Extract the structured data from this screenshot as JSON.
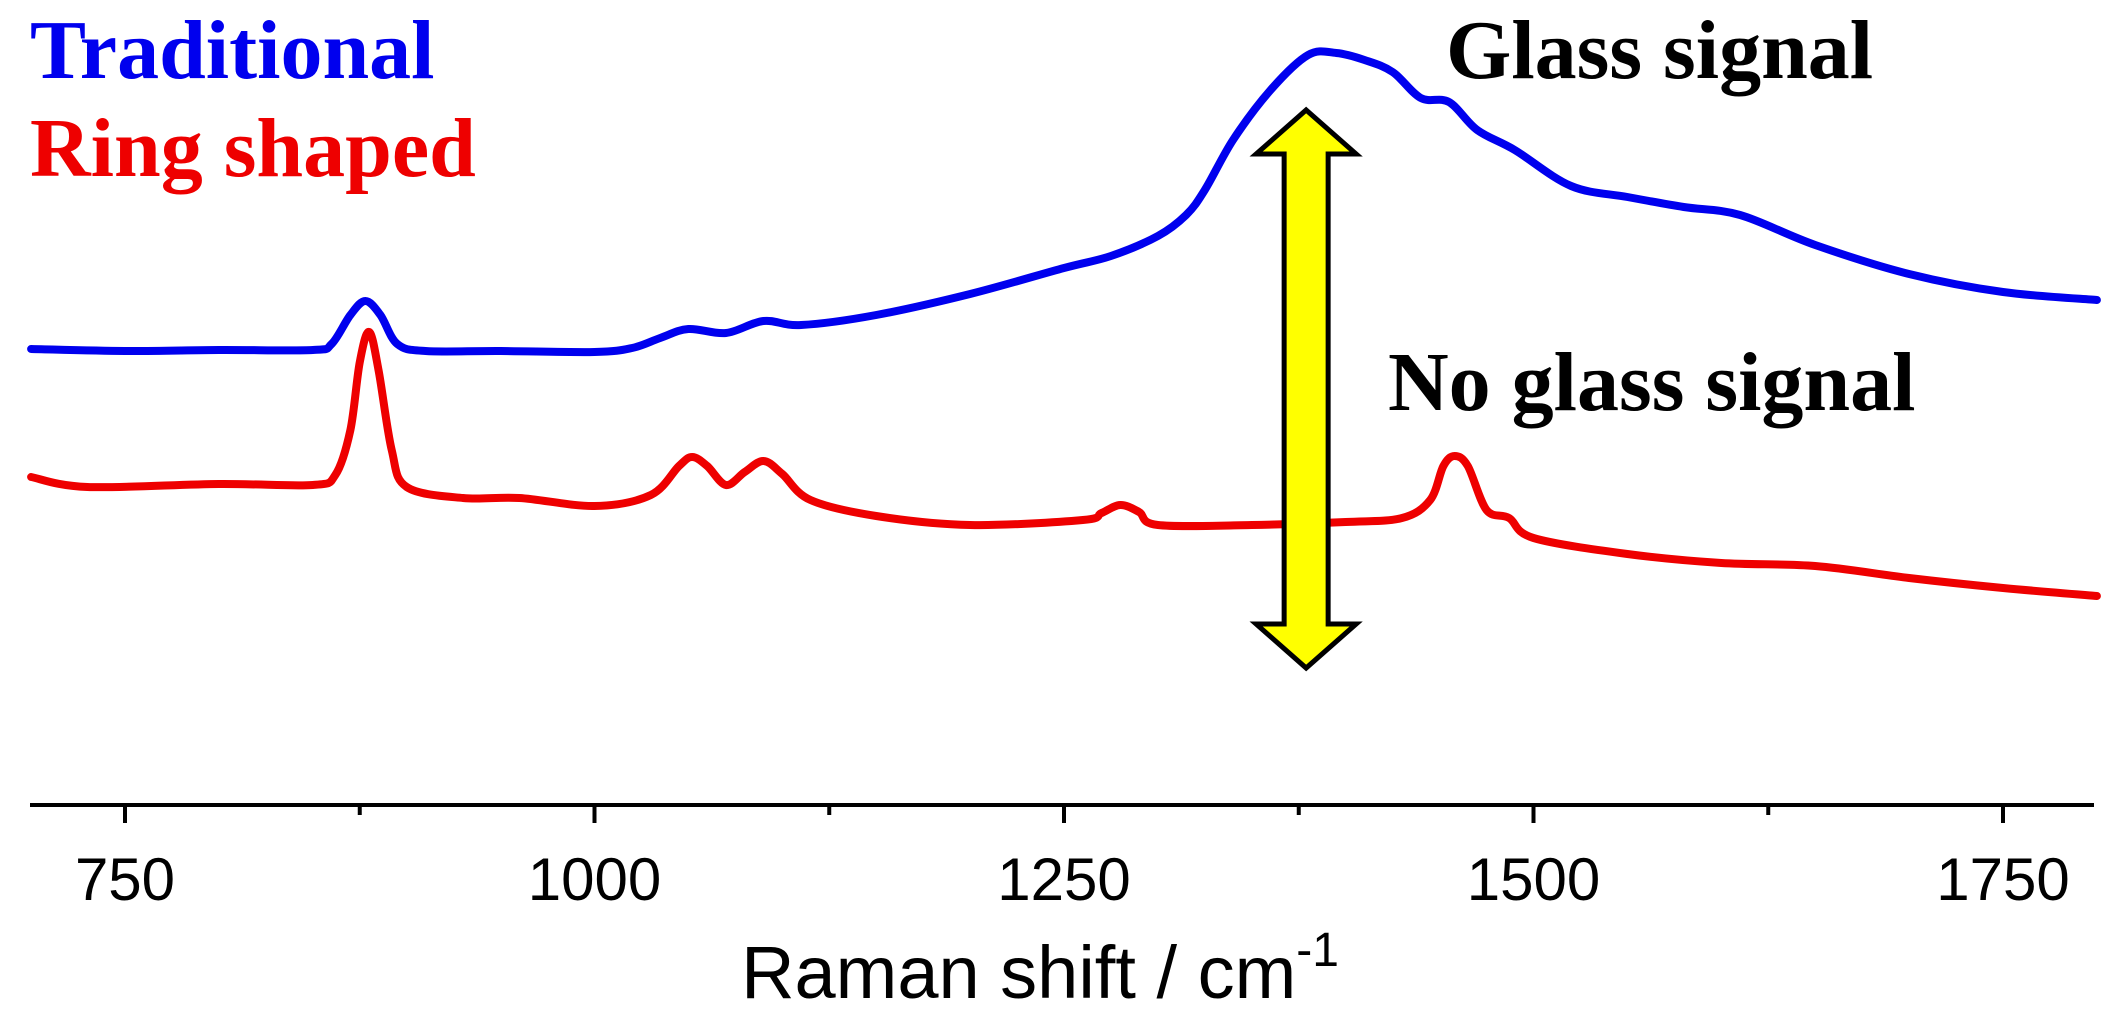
{
  "chart_data": {
    "type": "line",
    "xlabel": "Raman shift / cm",
    "xlabel_superscript": "-1",
    "ylabel": "",
    "xlim": [
      700,
      1800
    ],
    "x_ticks": [
      750,
      1000,
      1250,
      1500,
      1750
    ],
    "grid": false,
    "legend_placement": "top-left",
    "series": [
      {
        "name": "Traditional",
        "color": "#0000ee",
        "points": [
          [
            700,
            349
          ],
          [
            750,
            351
          ],
          [
            800,
            350
          ],
          [
            850,
            350
          ],
          [
            860,
            344
          ],
          [
            870,
            315
          ],
          [
            878,
            301
          ],
          [
            886,
            315
          ],
          [
            895,
            344
          ],
          [
            910,
            351
          ],
          [
            950,
            351
          ],
          [
            1000,
            352
          ],
          [
            1020,
            348
          ],
          [
            1035,
            338
          ],
          [
            1050,
            329
          ],
          [
            1070,
            333
          ],
          [
            1090,
            321
          ],
          [
            1110,
            325
          ],
          [
            1150,
            315
          ],
          [
            1200,
            294
          ],
          [
            1250,
            268
          ],
          [
            1275,
            256
          ],
          [
            1300,
            236
          ],
          [
            1315,
            215
          ],
          [
            1325,
            190
          ],
          [
            1340,
            140
          ],
          [
            1360,
            90
          ],
          [
            1380,
            55
          ],
          [
            1395,
            53
          ],
          [
            1410,
            60
          ],
          [
            1425,
            72
          ],
          [
            1440,
            98
          ],
          [
            1455,
            102
          ],
          [
            1470,
            130
          ],
          [
            1490,
            150
          ],
          [
            1520,
            186
          ],
          [
            1550,
            197
          ],
          [
            1580,
            207
          ],
          [
            1610,
            215
          ],
          [
            1650,
            245
          ],
          [
            1700,
            274
          ],
          [
            1750,
            292
          ],
          [
            1800,
            300
          ]
        ]
      },
      {
        "name": "Ring shaped",
        "color": "#ee0000",
        "points": [
          [
            700,
            477
          ],
          [
            730,
            487
          ],
          [
            800,
            484
          ],
          [
            850,
            485
          ],
          [
            862,
            475
          ],
          [
            870,
            430
          ],
          [
            875,
            362
          ],
          [
            880,
            332
          ],
          [
            885,
            370
          ],
          [
            892,
            450
          ],
          [
            900,
            487
          ],
          [
            930,
            498
          ],
          [
            960,
            498
          ],
          [
            1000,
            506
          ],
          [
            1030,
            495
          ],
          [
            1045,
            466
          ],
          [
            1052,
            457
          ],
          [
            1060,
            466
          ],
          [
            1070,
            485
          ],
          [
            1080,
            472
          ],
          [
            1090,
            461
          ],
          [
            1100,
            474
          ],
          [
            1115,
            500
          ],
          [
            1150,
            516
          ],
          [
            1200,
            525
          ],
          [
            1260,
            520
          ],
          [
            1270,
            513
          ],
          [
            1280,
            505
          ],
          [
            1290,
            512
          ],
          [
            1300,
            525
          ],
          [
            1350,
            525
          ],
          [
            1400,
            522
          ],
          [
            1430,
            518
          ],
          [
            1445,
            500
          ],
          [
            1452,
            466
          ],
          [
            1458,
            456
          ],
          [
            1465,
            466
          ],
          [
            1475,
            510
          ],
          [
            1487,
            518
          ],
          [
            1500,
            538
          ],
          [
            1550,
            554
          ],
          [
            1600,
            563
          ],
          [
            1650,
            566
          ],
          [
            1700,
            578
          ],
          [
            1750,
            588
          ],
          [
            1800,
            596
          ]
        ]
      }
    ],
    "annotations": {
      "legend_traditional": "Traditional",
      "legend_ring": "Ring shaped",
      "glass_signal": "Glass signal",
      "no_glass_signal": "No glass signal",
      "arrow_color": "#ffff00",
      "arrow_x": 1380
    }
  }
}
